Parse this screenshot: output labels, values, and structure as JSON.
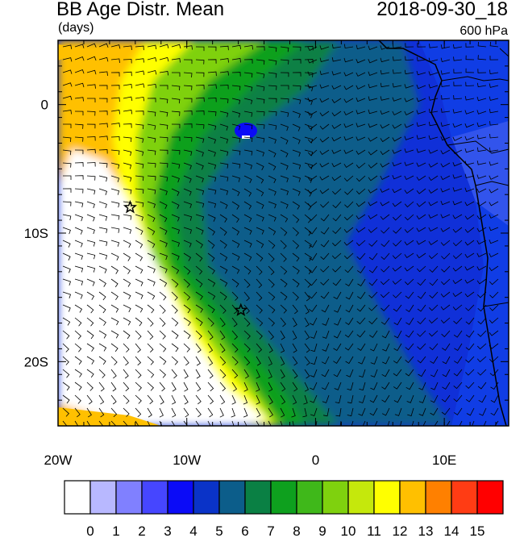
{
  "header": {
    "title": "BB Age Distr. Mean",
    "units": "(days)",
    "timestamp": "2018-09-30_18",
    "level": "600 hPa"
  },
  "map": {
    "lon_range": [
      -20,
      15
    ],
    "lat_range": [
      -25,
      5
    ],
    "lon_ticks": [
      {
        "value": -20,
        "label": "20W"
      },
      {
        "value": -10,
        "label": "10W"
      },
      {
        "value": 0,
        "label": "0"
      },
      {
        "value": 10,
        "label": "10E"
      }
    ],
    "lat_ticks": [
      {
        "value": 0,
        "label": "0"
      },
      {
        "value": -10,
        "label": "10S"
      },
      {
        "value": -20,
        "label": "20S"
      }
    ],
    "markers": [
      {
        "type": "star",
        "lon": -14.4,
        "lat": -8.0
      },
      {
        "type": "star",
        "lon": -5.8,
        "lat": -16.0
      }
    ]
  },
  "colorbar": {
    "labels": [
      "0",
      "1",
      "2",
      "3",
      "4",
      "5",
      "6",
      "7",
      "8",
      "9",
      "10",
      "11",
      "12",
      "13",
      "14",
      "15"
    ],
    "colors": [
      "#ffffff",
      "#b8b8ff",
      "#8080ff",
      "#4646ff",
      "#0b0bf7",
      "#0a33c8",
      "#0c5d8a",
      "#0a8044",
      "#0ea01e",
      "#3fb81a",
      "#7fd10e",
      "#c5e80c",
      "#ffff00",
      "#ffc000",
      "#ff8000",
      "#ff3c14",
      "#ff0000"
    ]
  }
}
